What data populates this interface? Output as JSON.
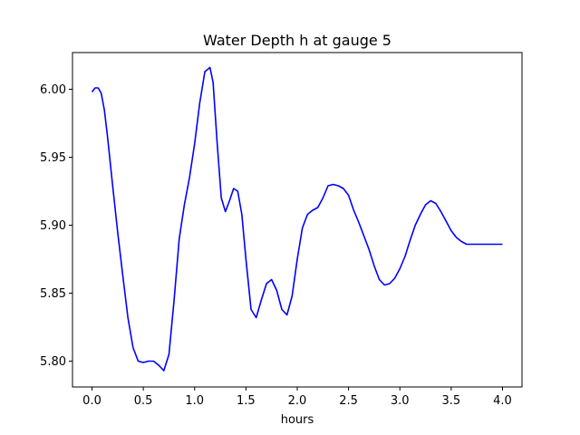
{
  "chart_data": {
    "type": "line",
    "title": "Water Depth h at gauge 5",
    "xlabel": "hours",
    "ylabel": "",
    "xlim": [
      -0.19,
      4.19
    ],
    "ylim": [
      5.781,
      6.027
    ],
    "xticks": [
      0.0,
      0.5,
      1.0,
      1.5,
      2.0,
      2.5,
      3.0,
      3.5,
      4.0
    ],
    "xtick_labels": [
      "0.0",
      "0.5",
      "1.0",
      "1.5",
      "2.0",
      "2.5",
      "3.0",
      "3.5",
      "4.0"
    ],
    "yticks": [
      5.8,
      5.85,
      5.9,
      5.95,
      6.0
    ],
    "ytick_labels": [
      "5.80",
      "5.85",
      "5.90",
      "5.95",
      "6.00"
    ],
    "grid": false,
    "series": [
      {
        "color": "#0000ff",
        "x": [
          0.0,
          0.03,
          0.06,
          0.09,
          0.12,
          0.15,
          0.2,
          0.25,
          0.3,
          0.35,
          0.4,
          0.45,
          0.5,
          0.55,
          0.6,
          0.65,
          0.7,
          0.75,
          0.8,
          0.85,
          0.9,
          0.95,
          1.0,
          1.05,
          1.1,
          1.15,
          1.18,
          1.22,
          1.26,
          1.3,
          1.34,
          1.38,
          1.42,
          1.46,
          1.5,
          1.55,
          1.6,
          1.65,
          1.7,
          1.75,
          1.8,
          1.85,
          1.9,
          1.95,
          2.0,
          2.05,
          2.1,
          2.15,
          2.2,
          2.25,
          2.3,
          2.35,
          2.4,
          2.45,
          2.5,
          2.55,
          2.6,
          2.65,
          2.7,
          2.75,
          2.8,
          2.85,
          2.9,
          2.95,
          3.0,
          3.05,
          3.1,
          3.15,
          3.2,
          3.25,
          3.3,
          3.35,
          3.4,
          3.45,
          3.5,
          3.55,
          3.6,
          3.65,
          3.7,
          3.75,
          3.8,
          3.85,
          3.9,
          3.95,
          4.0
        ],
        "y": [
          5.998,
          6.001,
          6.001,
          5.997,
          5.985,
          5.966,
          5.93,
          5.895,
          5.863,
          5.832,
          5.81,
          5.8,
          5.799,
          5.8,
          5.8,
          5.797,
          5.793,
          5.805,
          5.845,
          5.89,
          5.915,
          5.935,
          5.96,
          5.99,
          6.013,
          6.016,
          6.005,
          5.96,
          5.92,
          5.91,
          5.918,
          5.927,
          5.925,
          5.908,
          5.875,
          5.838,
          5.832,
          5.845,
          5.857,
          5.86,
          5.852,
          5.838,
          5.834,
          5.848,
          5.875,
          5.898,
          5.908,
          5.911,
          5.913,
          5.92,
          5.929,
          5.93,
          5.929,
          5.927,
          5.922,
          5.911,
          5.902,
          5.892,
          5.882,
          5.87,
          5.86,
          5.856,
          5.857,
          5.861,
          5.868,
          5.877,
          5.889,
          5.9,
          5.908,
          5.915,
          5.918,
          5.916,
          5.91,
          5.903,
          5.896,
          5.891,
          5.888,
          5.886,
          5.886,
          5.886,
          5.886,
          5.886,
          5.886,
          5.886,
          5.886
        ]
      }
    ]
  }
}
